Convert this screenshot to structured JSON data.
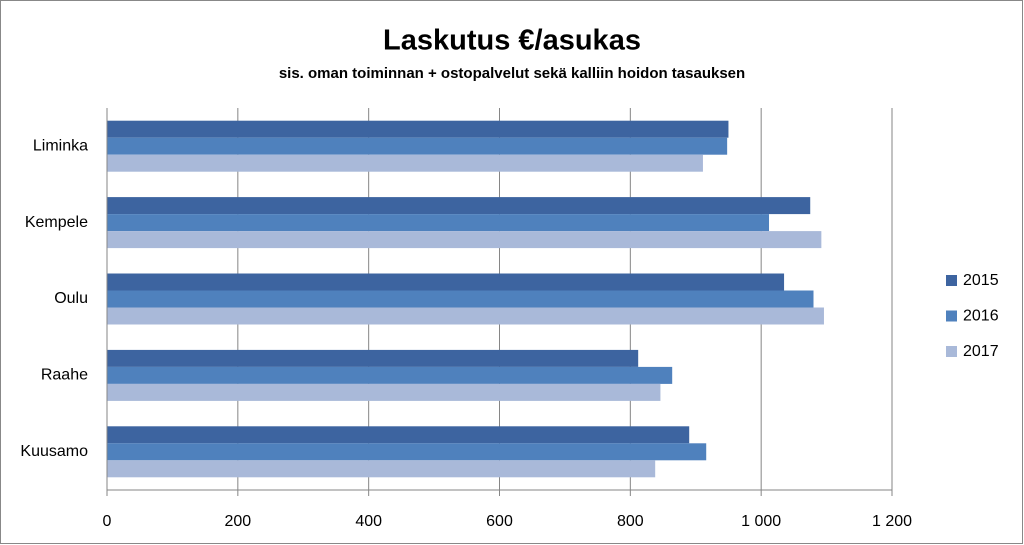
{
  "chart_data": {
    "type": "bar",
    "orientation": "horizontal",
    "title": "Laskutus €/asukas",
    "subtitle": "sis. oman toiminnan + ostopalvelut sekä kalliin hoidon tasauksen",
    "categories": [
      "Liminka",
      "Kempele",
      "Oulu",
      "Raahe",
      "Kuusamo"
    ],
    "series": [
      {
        "name": "2015",
        "color": "#3d64a0",
        "values": [
          950,
          1075,
          1035,
          812,
          890
        ]
      },
      {
        "name": "2016",
        "color": "#4f81bd",
        "values": [
          948,
          1012,
          1080,
          864,
          916
        ]
      },
      {
        "name": "2017",
        "color": "#a9b9d9",
        "values": [
          911,
          1092,
          1096,
          846,
          838
        ]
      }
    ],
    "xlim": [
      0,
      1200
    ],
    "xticks": [
      0,
      200,
      400,
      600,
      800,
      {
        "value": 1000,
        "label": "1 000"
      },
      {
        "value": 1200,
        "label": "1 200"
      }
    ],
    "grid": true,
    "legend": "right"
  }
}
